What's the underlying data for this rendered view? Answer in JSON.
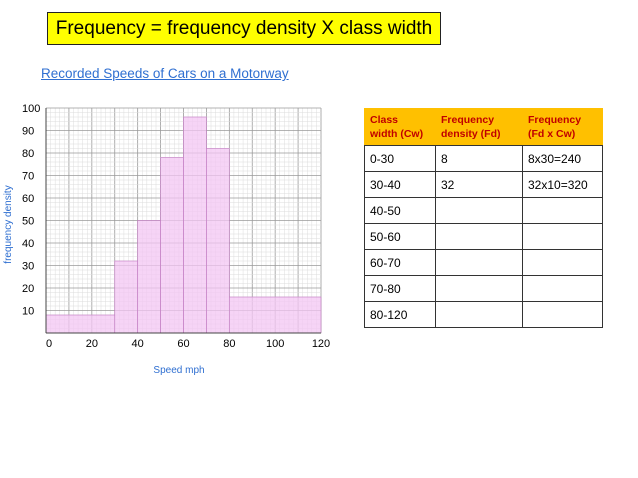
{
  "header": {
    "formula": "Frequency = frequency density X class width"
  },
  "chart_data": {
    "type": "bar",
    "title": "Recorded Speeds of Cars on a Motorway",
    "xlabel": "Speed mph",
    "ylabel": "frequency density",
    "xlim": [
      0,
      120
    ],
    "ylim": [
      0,
      100
    ],
    "xticks": [
      0,
      20,
      40,
      60,
      80,
      100,
      120
    ],
    "yticks": [
      10,
      20,
      30,
      40,
      50,
      60,
      70,
      80,
      90,
      100
    ],
    "grid": true,
    "bar_color": "#f3c6f3",
    "bins": [
      {
        "x0": 0,
        "x1": 30,
        "fd": 8
      },
      {
        "x0": 30,
        "x1": 40,
        "fd": 32
      },
      {
        "x0": 40,
        "x1": 50,
        "fd": 50
      },
      {
        "x0": 50,
        "x1": 60,
        "fd": 78
      },
      {
        "x0": 60,
        "x1": 70,
        "fd": 96
      },
      {
        "x0": 70,
        "x1": 80,
        "fd": 82
      },
      {
        "x0": 80,
        "x1": 120,
        "fd": 16
      }
    ]
  },
  "table": {
    "headers": [
      "Class width (Cw)",
      "Frequency density (Fd)",
      "Frequency (Fd x Cw)"
    ],
    "header_lines": [
      [
        "Class",
        "width (Cw)"
      ],
      [
        "Frequency",
        "density (Fd)"
      ],
      [
        "Frequency",
        "(Fd x Cw)"
      ]
    ],
    "rows": [
      [
        "0-30",
        "8",
        "8x30=240"
      ],
      [
        "30-40",
        "32",
        "32x10=320"
      ],
      [
        "40-50",
        "",
        ""
      ],
      [
        "50-60",
        "",
        ""
      ],
      [
        "60-70",
        "",
        ""
      ],
      [
        "70-80",
        "",
        ""
      ],
      [
        "80-120",
        "",
        ""
      ]
    ],
    "header_color": "#ffc000",
    "header_text_color": "#c00000"
  }
}
